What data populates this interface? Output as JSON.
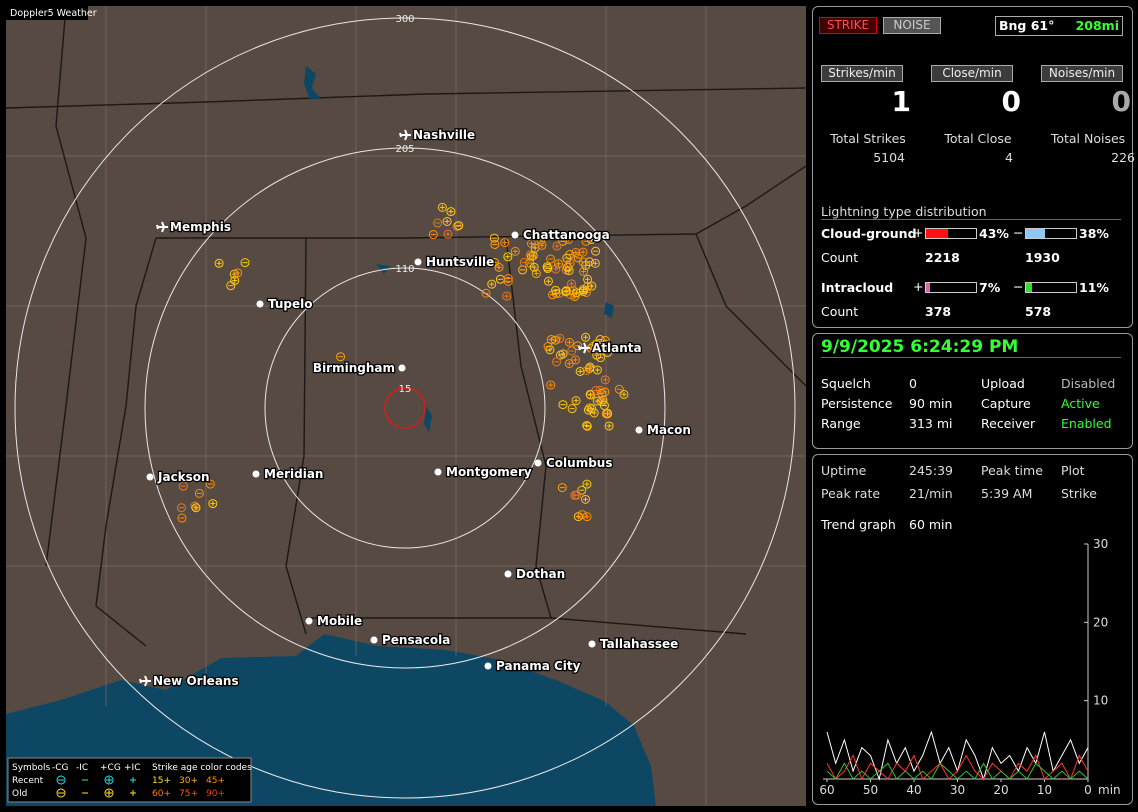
{
  "map": {
    "title": "Doppler5 Weather",
    "range_rings": [
      "15",
      "110",
      "205",
      "300"
    ],
    "cities": [
      {
        "name": "Nashville",
        "airport": true
      },
      {
        "name": "Memphis",
        "airport": true
      },
      {
        "name": "Chattanooga",
        "airport": false
      },
      {
        "name": "Huntsville",
        "airport": false
      },
      {
        "name": "Tupelo",
        "airport": false
      },
      {
        "name": "Atlanta",
        "airport": true
      },
      {
        "name": "Birmingham",
        "airport": false
      },
      {
        "name": "Macon",
        "airport": false
      },
      {
        "name": "Jackson",
        "airport": false
      },
      {
        "name": "Meridian",
        "airport": false
      },
      {
        "name": "Montgomery",
        "airport": false
      },
      {
        "name": "Columbus",
        "airport": false
      },
      {
        "name": "Dothan",
        "airport": false
      },
      {
        "name": "Mobile",
        "airport": false
      },
      {
        "name": "Pensacola",
        "airport": false
      },
      {
        "name": "Tallahassee",
        "airport": false
      },
      {
        "name": "Panama City",
        "airport": false
      },
      {
        "name": "New Orleans",
        "airport": true
      }
    ]
  },
  "legend": {
    "symbols": "Symbols",
    "headers": [
      "-CG",
      "-IC",
      "+CG",
      "+IC"
    ],
    "rows": [
      "Recent",
      "Old"
    ],
    "age_title": "Strike age color codes",
    "age_recent": [
      "15+",
      "30+",
      "45+"
    ],
    "age_old": [
      "60+",
      "75+",
      "90+"
    ]
  },
  "status": {
    "strike": "STRIKE",
    "noise": "NOISE",
    "bearing": "Bng 61°",
    "distance": "208mi",
    "rates": [
      {
        "label": "Strikes/min",
        "value": 1
      },
      {
        "label": "Close/min",
        "value": 0
      },
      {
        "label": "Noises/min",
        "value": 0
      }
    ],
    "totals": [
      {
        "label": "Total Strikes",
        "value": 5104
      },
      {
        "label": "Total Close",
        "value": 4
      },
      {
        "label": "Total Noises",
        "value": 226
      }
    ],
    "distribution": {
      "title": "Lightning type distribution",
      "count_label": "Count",
      "types": [
        {
          "label": "Cloud-ground",
          "pos": {
            "sign": "+",
            "value": 43,
            "value_label": "43%",
            "count": 2218,
            "color": "#ff1010"
          },
          "neg": {
            "sign": "−",
            "value": 38,
            "value_label": "38%",
            "count": 1930,
            "color": "#8ec8f0"
          }
        },
        {
          "label": "Intracloud",
          "pos": {
            "sign": "+",
            "value": 7,
            "value_label": "7%",
            "count": 378,
            "color": "#e060b0"
          },
          "neg": {
            "sign": "−",
            "value": 11,
            "value_label": "11%",
            "count": 578,
            "color": "#30e030"
          }
        }
      ]
    }
  },
  "settings": {
    "datetime": "9/9/2025 6:24:29 PM",
    "rows": [
      [
        "Squelch",
        0,
        "Upload",
        "Disabled"
      ],
      [
        "Persistence",
        "90 min",
        "Capture",
        "Active"
      ],
      [
        "Range",
        "313 mi",
        "Receiver",
        "Enabled"
      ]
    ]
  },
  "stats": {
    "rows": [
      [
        "Uptime",
        "245:39",
        "Peak time",
        "Plot"
      ],
      [
        "Peak rate",
        "21/min",
        "5:39 AM",
        "Strike"
      ]
    ],
    "trend_label": "Trend graph",
    "trend_value": "60 min"
  },
  "trend": {
    "xlim": [
      60,
      0
    ],
    "xticks": [
      60,
      50,
      40,
      30,
      20,
      10,
      0
    ],
    "x_unit": "min",
    "ylim": [
      0,
      30
    ],
    "yticks": [
      10,
      20,
      30
    ],
    "series": [
      {
        "color": "#ffffff",
        "values": [
          6,
          2,
          5,
          1,
          4,
          3,
          0,
          5,
          2,
          4,
          1,
          3,
          6,
          2,
          4,
          1,
          5,
          3,
          0,
          4,
          2,
          3,
          1,
          4,
          2,
          6,
          1,
          3,
          5,
          2,
          4
        ]
      },
      {
        "color": "#ff3030",
        "values": [
          2,
          0,
          1,
          3,
          0,
          2,
          1,
          0,
          2,
          1,
          3,
          0,
          1,
          2,
          0,
          1,
          3,
          1,
          0,
          2,
          1,
          0,
          2,
          1,
          3,
          0,
          1,
          2,
          0,
          3,
          1
        ]
      },
      {
        "color": "#30c030",
        "values": [
          1,
          0,
          2,
          0,
          1,
          0,
          1,
          2,
          0,
          1,
          0,
          1,
          0,
          2,
          1,
          0,
          1,
          0,
          2,
          0,
          1,
          0,
          1,
          0,
          2,
          1,
          0,
          1,
          0,
          1,
          0
        ]
      }
    ]
  }
}
